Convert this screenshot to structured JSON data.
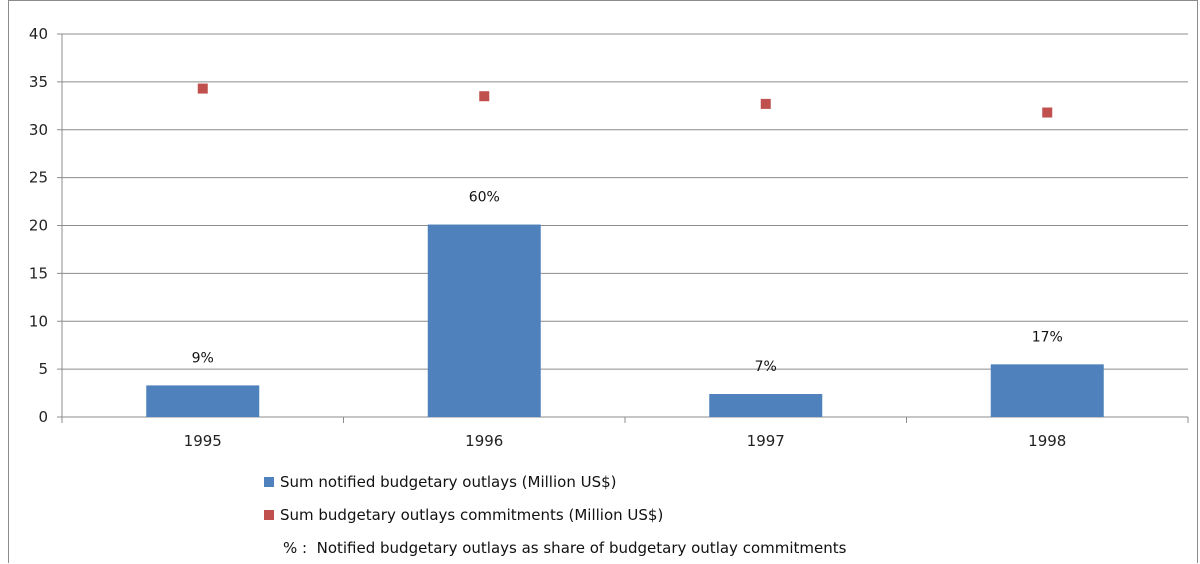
{
  "chart_data": {
    "type": "bar",
    "categories": [
      "1995",
      "1996",
      "1997",
      "1998"
    ],
    "ylim": [
      0,
      40
    ],
    "yticks": [
      0,
      5,
      10,
      15,
      20,
      25,
      30,
      35,
      40
    ],
    "grid": true,
    "legend_position": "bottom",
    "series": [
      {
        "name": "Sum notified budgetary outlays (Million US$)",
        "kind": "bar",
        "color": "#4f81bd",
        "values": [
          3.3,
          20.1,
          2.4,
          5.5
        ],
        "labels": [
          "9%",
          "60%",
          "7%",
          "17%"
        ]
      },
      {
        "name": "Sum budgetary outlays commitments (Million US$)",
        "kind": "marker",
        "color": "#c0504d",
        "values": [
          34.3,
          33.5,
          32.7,
          31.8
        ]
      }
    ],
    "note": "% :  Notified budgetary outlays as share of budgetary outlay commitments"
  }
}
